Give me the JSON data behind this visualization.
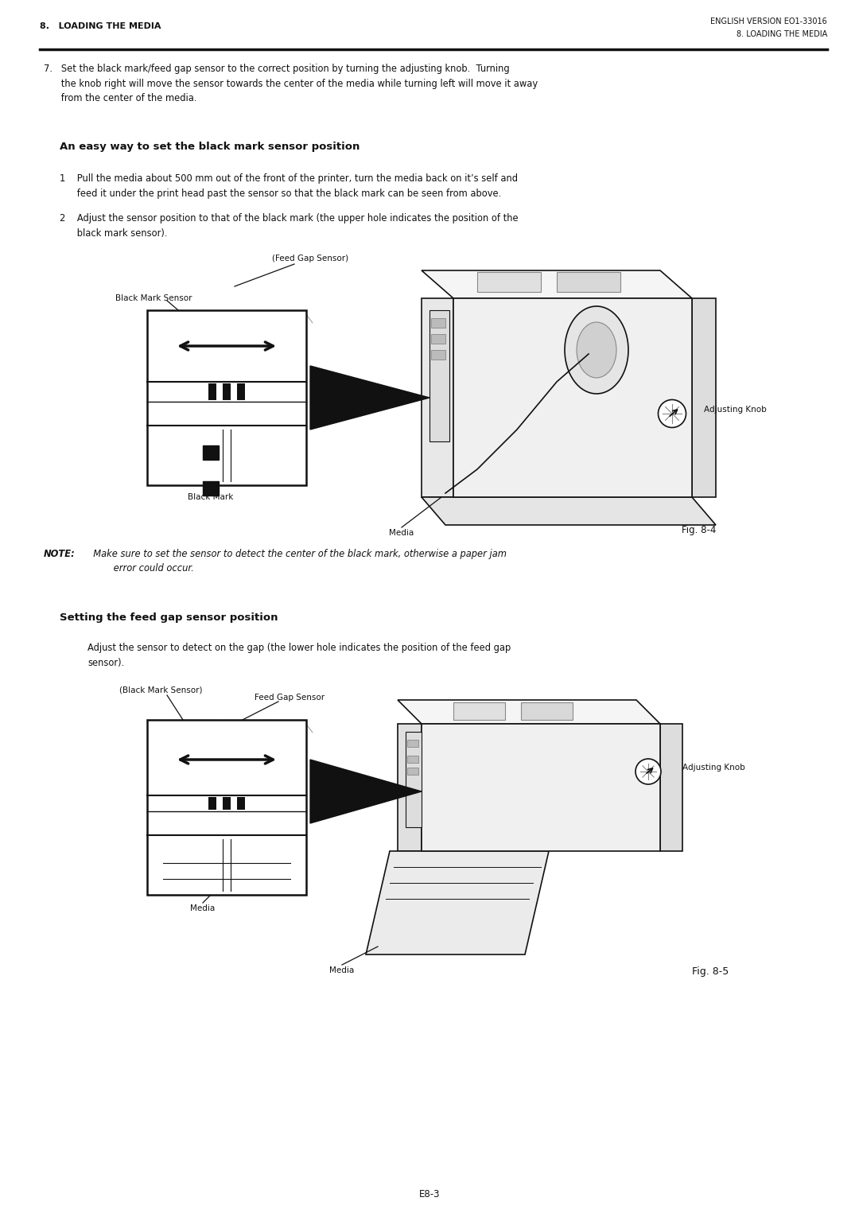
{
  "page_width": 10.8,
  "page_height": 15.25,
  "bg_color": "#ffffff",
  "header_left": "8.   LOADING THE MEDIA",
  "header_right_top": "ENGLISH VERSION EO1-33016",
  "header_right_bottom": "8. LOADING THE MEDIA",
  "footer_center": "E8-3",
  "heading1": "An easy way to set the black mark sensor position",
  "heading2": "Setting the feed gap sensor position",
  "fig1_caption": "Fig. 8-4",
  "fig2_caption": "Fig. 8-5",
  "fig1_label_feed_gap": "(Feed Gap Sensor)",
  "fig1_label_black_mark_sensor": "Black Mark Sensor",
  "fig1_label_black_mark": "Black Mark",
  "fig1_label_media": "Media",
  "fig1_label_adjusting_knob": "Adjusting Knob",
  "fig2_label_black_mark_sensor": "(Black Mark Sensor)",
  "fig2_label_feed_gap": "Feed Gap Sensor",
  "fig2_label_media1": "Media",
  "fig2_label_media2": "Media",
  "fig2_label_adjusting_knob": "Adjusting Knob",
  "note_bold": "NOTE:",
  "note_italic": "  Make sure to set the sensor to detect the center of the black mark, otherwise a paper jam\n         error could occur."
}
